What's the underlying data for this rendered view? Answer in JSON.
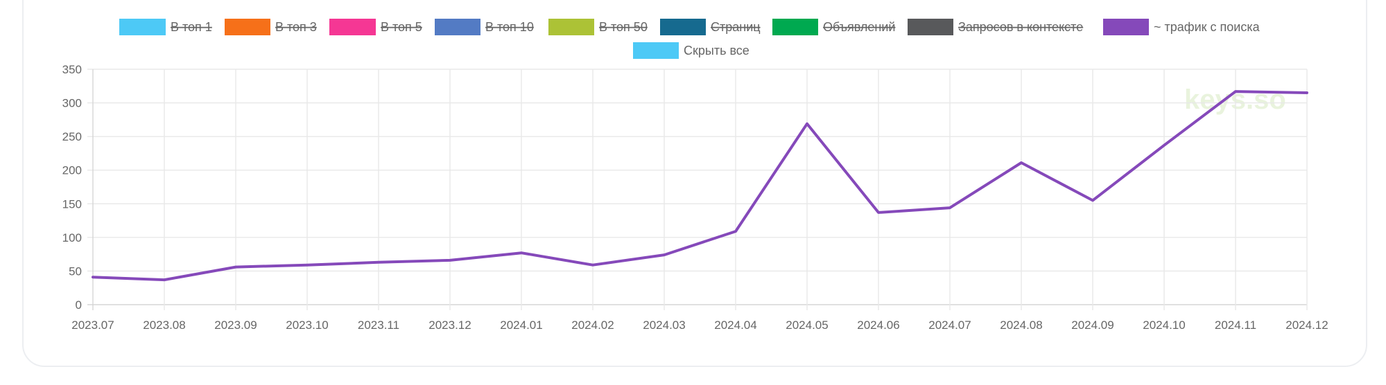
{
  "legend": {
    "items": [
      {
        "label": "В топ 1",
        "color": "#4dc9f6",
        "hidden": true
      },
      {
        "label": "В топ 3",
        "color": "#f67019",
        "hidden": true
      },
      {
        "label": "В топ 5",
        "color": "#f53794",
        "hidden": true
      },
      {
        "label": "В топ 10",
        "color": "#537bc4",
        "hidden": true
      },
      {
        "label": "В топ 50",
        "color": "#acc236",
        "hidden": true
      },
      {
        "label": "Страниц",
        "color": "#166a8f",
        "hidden": true
      },
      {
        "label": "Объявлений",
        "color": "#00a950",
        "hidden": true
      },
      {
        "label": "Запросов в контексте",
        "color": "#58595b",
        "hidden": true
      },
      {
        "label": "~ трафик с поиска",
        "color": "#8549ba",
        "hidden": false
      }
    ],
    "toggle_all_label": "Скрыть все",
    "toggle_all_color": "#4dc9f6"
  },
  "watermark": "keys.so",
  "chart_data": {
    "type": "line",
    "categories": [
      "2023.07",
      "2023.08",
      "2023.09",
      "2023.10",
      "2023.11",
      "2023.12",
      "2024.01",
      "2024.02",
      "2024.03",
      "2024.04",
      "2024.05",
      "2024.06",
      "2024.07",
      "2024.08",
      "2024.09",
      "2024.10",
      "2024.11",
      "2024.12"
    ],
    "series": [
      {
        "name": "~ трафик с поиска",
        "color": "#8549ba",
        "values": [
          41,
          37,
          56,
          59,
          63,
          66,
          77,
          59,
          74,
          109,
          269,
          137,
          144,
          211,
          155,
          237,
          317,
          315
        ]
      }
    ],
    "ylim": [
      0,
      350
    ],
    "yticks": [
      0,
      50,
      100,
      150,
      200,
      250,
      300,
      350
    ],
    "grid": true,
    "legend_position": "top"
  }
}
